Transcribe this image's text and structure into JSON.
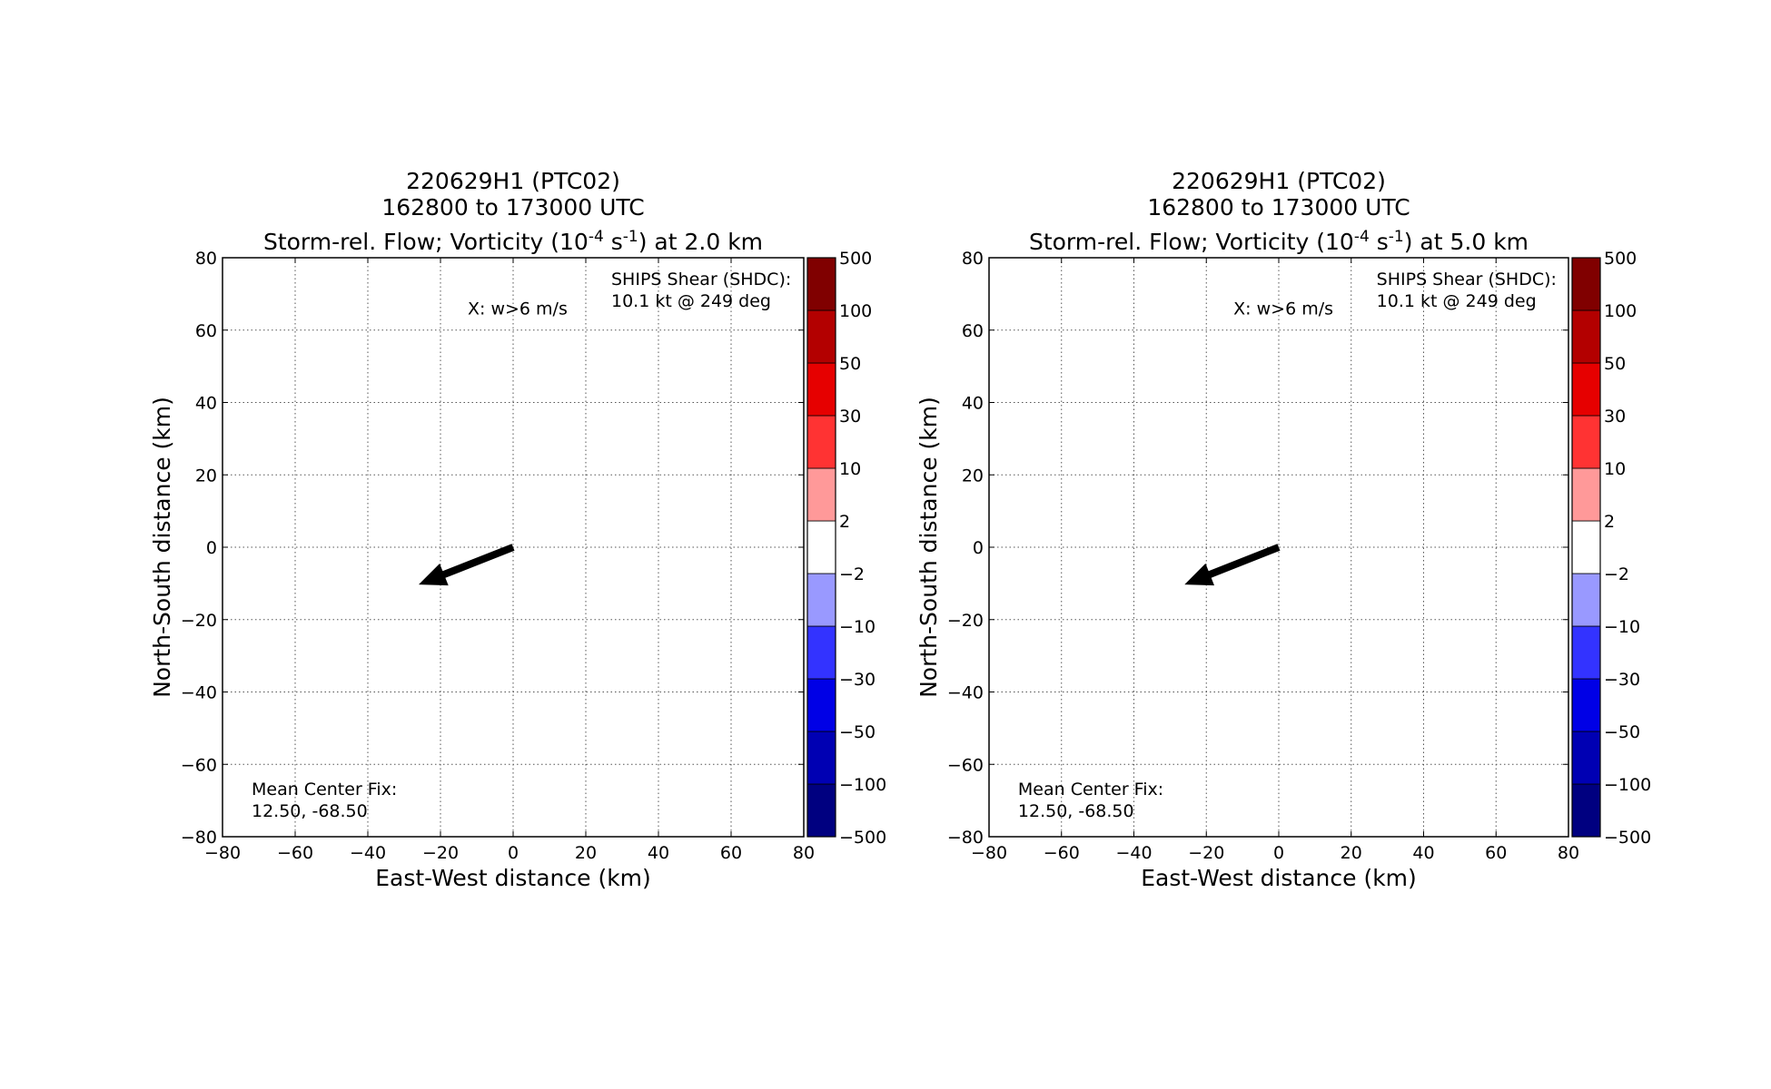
{
  "chart_data": [
    {
      "type": "scatter",
      "title_lines": [
        "220629H1 (PTC02)",
        "162800 to 173000 UTC"
      ],
      "title_main": "Storm-rel. Flow; Vorticity (10",
      "title_sup1": "-4",
      "title_mid": " s",
      "title_sup2": "-1",
      "title_end": ") at 2.0 km",
      "xlabel": "East-West distance (km)",
      "ylabel": "North-South distance (km)",
      "xlim": [
        -80,
        80
      ],
      "ylim": [
        -80,
        80
      ],
      "xticks": [
        -80,
        -60,
        -40,
        -20,
        0,
        20,
        40,
        60,
        80
      ],
      "yticks": [
        -80,
        -60,
        -40,
        -20,
        0,
        20,
        40,
        60,
        80
      ],
      "grid": true,
      "annotations": {
        "marker_note": "X: w>6 m/s",
        "shear_line1": "SHIPS Shear (SHDC):",
        "shear_line2": "10.1 kt @ 249 deg",
        "center_line1": "Mean Center Fix:",
        "center_line2": "12.50, -68.50"
      },
      "shear_vector": {
        "x0": 0,
        "y0": 0,
        "x1": -26,
        "y1": -10.3
      },
      "colorbar": {
        "levels": [
          "−500",
          "−100",
          "−50",
          "−30",
          "−10",
          "−2",
          "2",
          "10",
          "30",
          "50",
          "100",
          "500"
        ],
        "colors": [
          "#000080",
          "#0000b3",
          "#0000e6",
          "#3333ff",
          "#9999ff",
          "#ffffff",
          "#ff9999",
          "#ff3333",
          "#e60000",
          "#b30000",
          "#800000"
        ]
      }
    },
    {
      "type": "scatter",
      "title_lines": [
        "220629H1 (PTC02)",
        "162800 to 173000 UTC"
      ],
      "title_main": "Storm-rel. Flow; Vorticity (10",
      "title_sup1": "-4",
      "title_mid": " s",
      "title_sup2": "-1",
      "title_end": ") at 5.0 km",
      "xlabel": "East-West distance (km)",
      "ylabel": "North-South distance (km)",
      "xlim": [
        -80,
        80
      ],
      "ylim": [
        -80,
        80
      ],
      "xticks": [
        -80,
        -60,
        -40,
        -20,
        0,
        20,
        40,
        60,
        80
      ],
      "yticks": [
        -80,
        -60,
        -40,
        -20,
        0,
        20,
        40,
        60,
        80
      ],
      "grid": true,
      "annotations": {
        "marker_note": "X: w>6 m/s",
        "shear_line1": "SHIPS Shear (SHDC):",
        "shear_line2": "10.1 kt @ 249 deg",
        "center_line1": "Mean Center Fix:",
        "center_line2": "12.50, -68.50"
      },
      "shear_vector": {
        "x0": 0,
        "y0": 0,
        "x1": -26,
        "y1": -10.3
      },
      "colorbar": {
        "levels": [
          "−500",
          "−100",
          "−50",
          "−30",
          "−10",
          "−2",
          "2",
          "10",
          "30",
          "50",
          "100",
          "500"
        ],
        "colors": [
          "#000080",
          "#0000b3",
          "#0000e6",
          "#3333ff",
          "#9999ff",
          "#ffffff",
          "#ff9999",
          "#ff3333",
          "#e60000",
          "#b30000",
          "#800000"
        ]
      }
    }
  ]
}
